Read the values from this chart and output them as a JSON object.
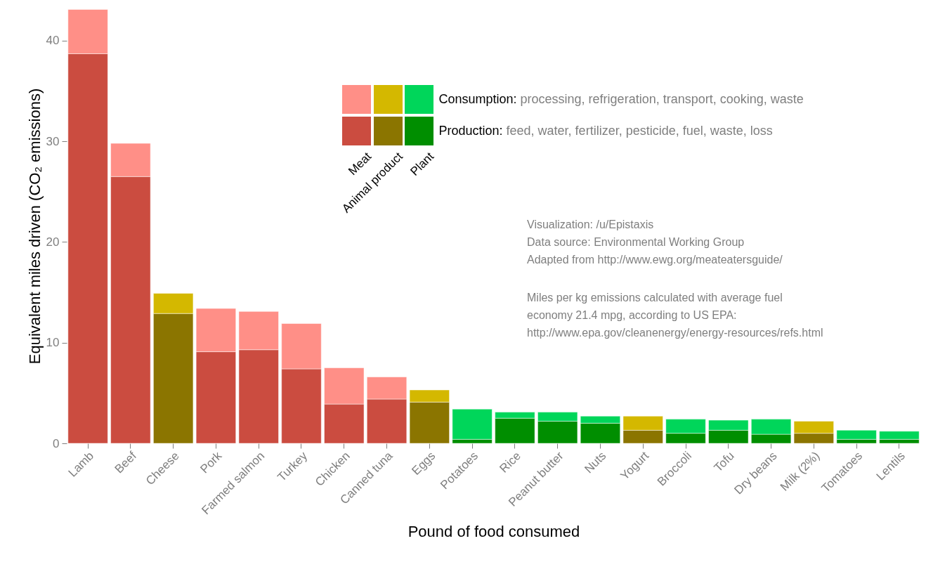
{
  "chart_data": {
    "type": "bar",
    "stacked": true,
    "xlabel": "Pound of food consumed",
    "ylabel": "Equivalent miles driven (CO₂ emissions)",
    "categories": [
      "Lamb",
      "Beef",
      "Cheese",
      "Pork",
      "Farmed salmon",
      "Turkey",
      "Chicken",
      "Canned tuna",
      "Eggs",
      "Potatoes",
      "Rice",
      "Peanut butter",
      "Nuts",
      "Yogurt",
      "Broccoli",
      "Tofu",
      "Dry beans",
      "Milk (2%)",
      "Tomatoes",
      "Lentils"
    ],
    "series": [
      {
        "name": "Production: feed, water, fertilizer, pesticide, fuel, waste, loss",
        "colors": [
          "#cb4c40",
          "#cb4c40",
          "#8b7500",
          "#cb4c40",
          "#cb4c40",
          "#cb4c40",
          "#cb4c40",
          "#cb4c40",
          "#8b7500",
          "#008e00",
          "#008e00",
          "#008e00",
          "#008e00",
          "#8b7500",
          "#008e00",
          "#008e00",
          "#008e00",
          "#8b7500",
          "#008e00",
          "#008e00"
        ],
        "values": [
          38.7,
          26.5,
          12.9,
          9.1,
          9.3,
          7.4,
          3.9,
          4.4,
          4.1,
          0.4,
          2.5,
          2.2,
          2.0,
          1.3,
          1.0,
          1.3,
          0.9,
          1.0,
          0.4,
          0.4
        ]
      },
      {
        "name": "Consumption: processing, refrigeration, transport, cooking, waste",
        "colors": [
          "#ff8f87",
          "#ff8f87",
          "#d4b800",
          "#ff8f87",
          "#ff8f87",
          "#ff8f87",
          "#ff8f87",
          "#ff8f87",
          "#d4b800",
          "#00d65a",
          "#00d65a",
          "#00d65a",
          "#00d65a",
          "#d4b800",
          "#00d65a",
          "#00d65a",
          "#00d65a",
          "#d4b800",
          "#00d65a",
          "#00d65a"
        ],
        "values": [
          4.4,
          3.3,
          2.0,
          4.3,
          3.8,
          4.5,
          3.6,
          2.2,
          1.2,
          3.0,
          0.6,
          0.9,
          0.7,
          1.4,
          1.4,
          1.0,
          1.5,
          1.2,
          0.9,
          0.8
        ]
      }
    ],
    "ylim": [
      0,
      43.2
    ],
    "yticks": [
      0,
      10,
      20,
      30,
      40
    ],
    "legend": "top right",
    "annotations": [
      "Meat",
      "Animal product",
      "Plant",
      "Visualization: /u/Epistaxis\nData source: Environmental Working Group\nAdapted from http://www.ewg.org/meateatersguide/",
      "Miles per kg emissions calculated with average fuel\neconomy 21.4 mpg, according to US EPA:\nhttp://www.epa.gov/cleanenergy/energy-resources/refs.html"
    ]
  }
}
